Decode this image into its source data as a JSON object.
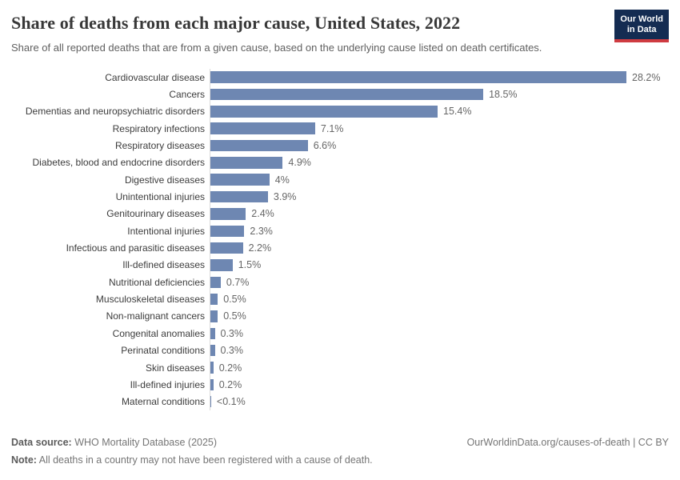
{
  "header": {
    "title": "Share of deaths from each major cause, United States, 2022",
    "subtitle": "Share of all reported deaths that are from a given cause, based on the underlying cause listed on death certificates.",
    "logo": {
      "line1": "Our World",
      "line2": "in Data",
      "bg_color": "#142c52",
      "accent_color": "#cf3b41"
    }
  },
  "chart_data": {
    "type": "bar",
    "orientation": "horizontal",
    "title": "Share of deaths from each major cause, United States, 2022",
    "xlabel": "",
    "ylabel": "",
    "unit": "%",
    "xlim": [
      0,
      28.2
    ],
    "grid": false,
    "legend": false,
    "bar_color": "#6e87b2",
    "axis_line_color": "#dcdcdc",
    "categories": [
      "Cardiovascular disease",
      "Cancers",
      "Dementias and neuropsychiatric disorders",
      "Respiratory infections",
      "Respiratory diseases",
      "Diabetes, blood and endocrine disorders",
      "Digestive diseases",
      "Unintentional injuries",
      "Genitourinary diseases",
      "Intentional injuries",
      "Infectious and parasitic diseases",
      "Ill-defined diseases",
      "Nutritional deficiencies",
      "Musculoskeletal diseases",
      "Non-malignant cancers",
      "Congenital anomalies",
      "Perinatal conditions",
      "Skin diseases",
      "Ill-defined injuries",
      "Maternal conditions"
    ],
    "values": [
      28.2,
      18.5,
      15.4,
      7.1,
      6.6,
      4.9,
      4,
      3.9,
      2.4,
      2.3,
      2.2,
      1.5,
      0.7,
      0.5,
      0.5,
      0.3,
      0.3,
      0.2,
      0.2,
      0.05
    ],
    "rows": [
      {
        "label": "Cardiovascular disease",
        "value": 28.2,
        "display": "28.2%"
      },
      {
        "label": "Cancers",
        "value": 18.5,
        "display": "18.5%"
      },
      {
        "label": "Dementias and neuropsychiatric disorders",
        "value": 15.4,
        "display": "15.4%"
      },
      {
        "label": "Respiratory infections",
        "value": 7.1,
        "display": "7.1%"
      },
      {
        "label": "Respiratory diseases",
        "value": 6.6,
        "display": "6.6%"
      },
      {
        "label": "Diabetes, blood and endocrine disorders",
        "value": 4.9,
        "display": "4.9%"
      },
      {
        "label": "Digestive diseases",
        "value": 4,
        "display": "4%"
      },
      {
        "label": "Unintentional injuries",
        "value": 3.9,
        "display": "3.9%"
      },
      {
        "label": "Genitourinary diseases",
        "value": 2.4,
        "display": "2.4%"
      },
      {
        "label": "Intentional injuries",
        "value": 2.3,
        "display": "2.3%"
      },
      {
        "label": "Infectious and parasitic diseases",
        "value": 2.2,
        "display": "2.2%"
      },
      {
        "label": "Ill-defined diseases",
        "value": 1.5,
        "display": "1.5%"
      },
      {
        "label": "Nutritional deficiencies",
        "value": 0.7,
        "display": "0.7%"
      },
      {
        "label": "Musculoskeletal diseases",
        "value": 0.5,
        "display": "0.5%"
      },
      {
        "label": "Non-malignant cancers",
        "value": 0.5,
        "display": "0.5%"
      },
      {
        "label": "Congenital anomalies",
        "value": 0.3,
        "display": "0.3%"
      },
      {
        "label": "Perinatal conditions",
        "value": 0.3,
        "display": "0.3%"
      },
      {
        "label": "Skin diseases",
        "value": 0.2,
        "display": "0.2%"
      },
      {
        "label": "Ill-defined injuries",
        "value": 0.2,
        "display": "0.2%"
      },
      {
        "label": "Maternal conditions",
        "value": 0.05,
        "display": "<0.1%"
      }
    ]
  },
  "footer": {
    "source_label": "Data source:",
    "source_text": " WHO Mortality Database (2025)",
    "note_label": "Note:",
    "note_text": " All deaths in a country may not have been registered with a cause of death.",
    "link_text": "OurWorldinData.org/causes-of-death | CC BY"
  }
}
